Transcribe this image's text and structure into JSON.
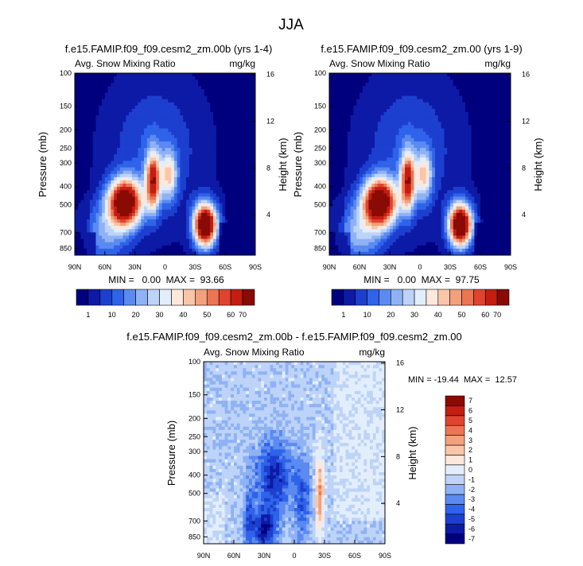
{
  "page_title": "JJA",
  "units": "mg/kg",
  "variable": "Avg. Snow Mixing Ratio",
  "colors": {
    "abs": [
      "#00007f",
      "#0d1aa6",
      "#1d3fcf",
      "#2e63ea",
      "#5b8af0",
      "#8fb2f4",
      "#bdd3f8",
      "#e3eefc",
      "#fde8dc",
      "#f9c6a8",
      "#f3a07c",
      "#ec7553",
      "#e0432f",
      "#c41d12",
      "#8a0a05"
    ],
    "diff": [
      "#00007f",
      "#0d1aa6",
      "#1d3fcf",
      "#2e63ea",
      "#5b8af0",
      "#8fb2f4",
      "#bdd3f8",
      "#e3eefc",
      "#fde8dc",
      "#f9c6a8",
      "#f3a07c",
      "#ec7553",
      "#e0432f",
      "#c41d12",
      "#8a0a05"
    ],
    "frame": "#000000"
  },
  "axes": {
    "ylabel": "Pressure (mb)",
    "y2label": "Height (km)",
    "pressure_ticks": [
      "100",
      "150",
      "200",
      "250",
      "300",
      "400",
      "500",
      "700",
      "850"
    ],
    "height_ticks": [
      "16",
      "12",
      "8",
      "4"
    ],
    "lat_ticks": [
      "90N",
      "60N",
      "30N",
      "0",
      "30S",
      "60S",
      "90S"
    ]
  },
  "chart_data": [
    {
      "type": "heatmap",
      "title": "f.e15.FAMIP.f09_f09.cesm2_zm.00b (yrs 1-4)",
      "subtitle_left": "Avg. Snow Mixing Ratio",
      "subtitle_right": "mg/kg",
      "stats": "MIN =   0.00  MAX =  93.66",
      "min": 0.0,
      "max": 93.66,
      "colorbar_labels": [
        "1",
        "10",
        "20",
        "30",
        "40",
        "50",
        "60",
        "70"
      ],
      "ylim": [
        100,
        850
      ],
      "xlim": [
        "90N",
        "90S"
      ]
    },
    {
      "type": "heatmap",
      "title": "f.e15.FAMIP.f09_f09.cesm2_zm.00 (yrs 1-9)",
      "subtitle_left": "Avg. Snow Mixing Ratio",
      "subtitle_right": "mg/kg",
      "stats": "MIN =   0.00  MAX =  97.75",
      "min": 0.0,
      "max": 97.75,
      "colorbar_labels": [
        "1",
        "10",
        "20",
        "30",
        "40",
        "50",
        "60",
        "70"
      ],
      "ylim": [
        100,
        850
      ],
      "xlim": [
        "90N",
        "90S"
      ]
    },
    {
      "type": "heatmap",
      "title": "f.e15.FAMIP.f09_f09.cesm2_zm.00b - f.e15.FAMIP.f09_f09.cesm2_zm.00",
      "subtitle_left": "Avg. Snow Mixing Ratio",
      "subtitle_right": "mg/kg",
      "stats": "MIN = -19.44  MAX =  12.57",
      "min": -19.44,
      "max": 12.57,
      "colorbar_labels": [
        "7",
        "6",
        "5",
        "4",
        "3",
        "2",
        "1",
        "0",
        "-1",
        "-2",
        "-3",
        "-4",
        "-5",
        "-6",
        "-7"
      ],
      "ylim": [
        100,
        850
      ],
      "xlim": [
        "90N",
        "90S"
      ]
    }
  ]
}
